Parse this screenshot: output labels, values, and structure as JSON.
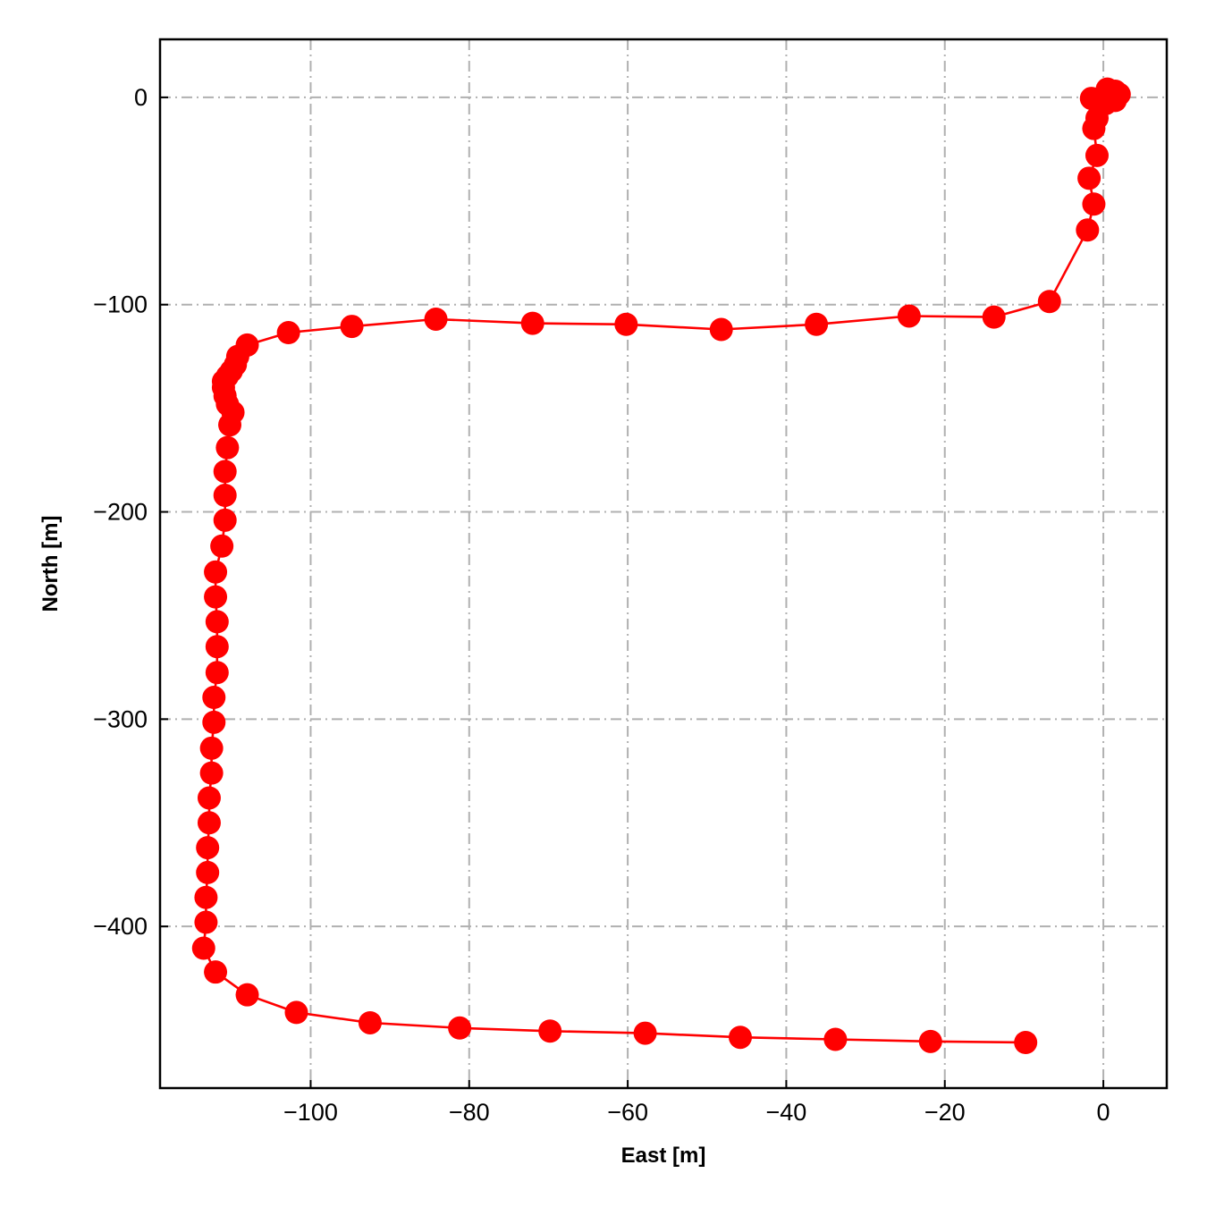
{
  "chart_data": {
    "type": "line",
    "title": "",
    "xlabel": "East [m]",
    "ylabel": "North [m]",
    "xlim": [
      -119,
      8
    ],
    "ylim": [
      -478,
      28
    ],
    "x_ticks": [
      -100,
      -80,
      -60,
      -40,
      -20,
      0
    ],
    "y_ticks": [
      0,
      -100,
      -200,
      -300,
      -400
    ],
    "x_tick_labels": [
      "−100",
      "−80",
      "−60",
      "−40",
      "−20",
      "0"
    ],
    "y_tick_labels": [
      "0",
      "−100",
      "−200",
      "−300",
      "−400"
    ],
    "grid": true,
    "legend": "none",
    "series": [
      {
        "color": "#ff0000",
        "marker": "circle",
        "points": [
          [
            1.5,
            3
          ],
          [
            2.0,
            1.5
          ],
          [
            1.5,
            -1.5
          ],
          [
            0.3,
            -3
          ],
          [
            -1.5,
            -0.5
          ],
          [
            0.3,
            0.3
          ],
          [
            1.0,
            2.0
          ],
          [
            0.5,
            4.0
          ],
          [
            -0.8,
            -10
          ],
          [
            -1.2,
            -15
          ],
          [
            -0.8,
            -28
          ],
          [
            -1.8,
            -39
          ],
          [
            -1.2,
            -51.5
          ],
          [
            -2.0,
            -64
          ],
          [
            -6.8,
            -98.5
          ],
          [
            -13.8,
            -106
          ],
          [
            -24.5,
            -105.5
          ],
          [
            -36.2,
            -109.5
          ],
          [
            -48.2,
            -112
          ],
          [
            -60.2,
            -109.5
          ],
          [
            -72.0,
            -109
          ],
          [
            -84.2,
            -107
          ],
          [
            -94.8,
            -110.5
          ],
          [
            -102.8,
            -113.5
          ],
          [
            -108.0,
            -119.5
          ],
          [
            -109.2,
            -125
          ],
          [
            -109.5,
            -129
          ],
          [
            -110.0,
            -132
          ],
          [
            -110.5,
            -134.5
          ],
          [
            -111.0,
            -137
          ],
          [
            -111.0,
            -140
          ],
          [
            -110.8,
            -144
          ],
          [
            -110.5,
            -148
          ],
          [
            -109.8,
            -152
          ],
          [
            -110.2,
            -158
          ],
          [
            -110.5,
            -169
          ],
          [
            -110.8,
            -180.5
          ],
          [
            -110.8,
            -192
          ],
          [
            -110.8,
            -204
          ],
          [
            -111.2,
            -216.5
          ],
          [
            -112.0,
            -229
          ],
          [
            -112.0,
            -241
          ],
          [
            -111.8,
            -253
          ],
          [
            -111.8,
            -265
          ],
          [
            -111.8,
            -277.5
          ],
          [
            -112.2,
            -289.5
          ],
          [
            -112.2,
            -301.5
          ],
          [
            -112.5,
            -314
          ],
          [
            -112.5,
            -326
          ],
          [
            -112.8,
            -338
          ],
          [
            -112.8,
            -350
          ],
          [
            -113.0,
            -362
          ],
          [
            -113.0,
            -374
          ],
          [
            -113.2,
            -386
          ],
          [
            -113.2,
            -398
          ],
          [
            -113.5,
            -410.5
          ],
          [
            -112.0,
            -422
          ],
          [
            -108.0,
            -433
          ],
          [
            -101.8,
            -441.5
          ],
          [
            -92.5,
            -446.5
          ],
          [
            -81.2,
            -449
          ],
          [
            -69.8,
            -450.5
          ],
          [
            -57.8,
            -451.5
          ],
          [
            -45.8,
            -453.5
          ],
          [
            -33.8,
            -454.5
          ],
          [
            -21.8,
            -455.5
          ],
          [
            -9.8,
            -456
          ]
        ]
      }
    ]
  }
}
